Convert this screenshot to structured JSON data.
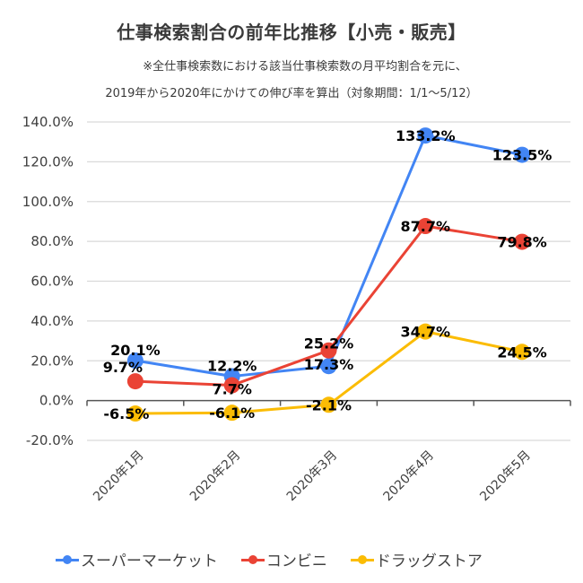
{
  "header": {
    "title": "仕事検索割合の前年比推移【小売・販売】",
    "subtitle_line1": "※全仕事検索数における該当仕事検索数の月平均割合を元に、",
    "subtitle_line2": "2019年から2020年にかけての伸び率を算出（対象期間：1/1〜5/12）"
  },
  "chart_data": {
    "type": "line",
    "title": "仕事検索割合の前年比推移【小売・販売】",
    "xlabel": "",
    "ylabel": "",
    "categories": [
      "2020年1月",
      "2020年2月",
      "2020年3月",
      "2020年4月",
      "2020年5月"
    ],
    "ylim": [
      -20,
      140
    ],
    "yticks": [
      140,
      120,
      100,
      80,
      60,
      40,
      20,
      0,
      -20
    ],
    "ytick_labels": [
      "140.0%",
      "120.0%",
      "100.0%",
      "80.0%",
      "60.0%",
      "40.0%",
      "20.0%",
      "0.0%",
      "-20.0%"
    ],
    "grid": true,
    "legend_position": "bottom",
    "series": [
      {
        "name": "スーパーマーケット",
        "color": "#4285F4",
        "values": [
          20.1,
          12.2,
          17.3,
          133.2,
          123.5
        ],
        "labels": [
          "20.1%",
          "12.2%",
          "17.3%",
          "133.2%",
          "123.5%"
        ]
      },
      {
        "name": "コンビニ",
        "color": "#EA4335",
        "values": [
          9.7,
          7.7,
          25.2,
          87.7,
          79.8
        ],
        "labels": [
          "9.7%",
          "7.7%",
          "25.2%",
          "87.7%",
          "79.8%"
        ]
      },
      {
        "name": "ドラッグストア",
        "color": "#FBBC04",
        "values": [
          -6.5,
          -6.1,
          -2.1,
          34.7,
          24.5
        ],
        "labels": [
          "-6.5%",
          "-6.1%",
          "-2.1%",
          "34.7%",
          "24.5%"
        ]
      }
    ]
  }
}
